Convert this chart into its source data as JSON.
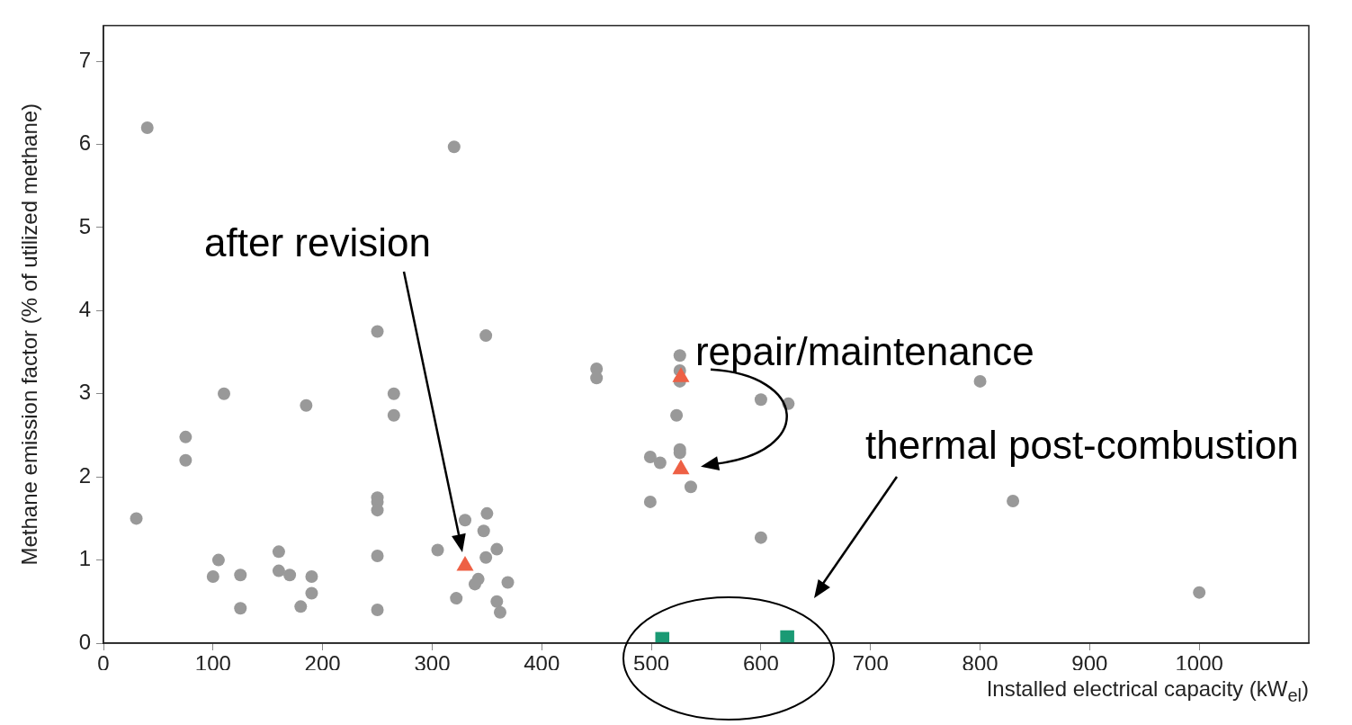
{
  "chart_data": {
    "type": "scatter",
    "xlabel": "Installed electrical capacity (kW$_{el}$)",
    "ylabel": "Methane emission factor (% of utilized methane)",
    "xlim": [
      0,
      1100
    ],
    "xticks": [
      0,
      100,
      200,
      300,
      400,
      500,
      600,
      700,
      800,
      900,
      1000
    ],
    "ylim": [
      0,
      7.43
    ],
    "yticks": [
      0,
      1,
      2,
      3,
      4,
      5,
      6,
      7
    ],
    "grid": false,
    "legend": false,
    "series": [
      {
        "color": "#999999",
        "marker": "circle",
        "x": [
          40,
          30,
          75,
          75,
          110,
          100,
          105,
          125,
          125,
          160,
          160,
          170,
          180,
          185,
          190,
          190,
          250,
          250,
          250,
          250,
          250,
          250,
          265,
          265,
          305,
          320,
          330,
          350,
          347,
          359,
          349,
          342,
          339,
          369,
          322,
          359,
          362,
          349,
          450,
          450,
          526,
          526,
          526,
          600,
          625,
          523,
          526,
          526,
          499,
          508,
          536,
          499,
          600,
          800,
          830,
          1000
        ],
        "values": [
          6.2,
          1.5,
          2.48,
          2.2,
          3.0,
          0.8,
          1.0,
          0.82,
          0.42,
          1.1,
          0.87,
          0.82,
          0.44,
          2.86,
          0.8,
          0.6,
          3.75,
          1.75,
          1.7,
          1.6,
          1.05,
          0.4,
          3.0,
          2.74,
          1.12,
          5.97,
          1.48,
          1.56,
          1.35,
          1.13,
          1.03,
          0.77,
          0.71,
          0.73,
          0.54,
          0.5,
          0.37,
          3.7,
          3.3,
          3.19,
          3.46,
          3.28,
          3.15,
          2.93,
          2.88,
          2.74,
          2.33,
          2.29,
          2.24,
          2.17,
          1.88,
          1.7,
          1.27,
          3.15,
          1.71,
          0.61
        ]
      },
      {
        "color": "#ee6045",
        "marker": "triangle",
        "x": [
          330,
          527,
          527
        ],
        "values": [
          0.93,
          3.2,
          2.09
        ]
      },
      {
        "color": "#1a9a74",
        "marker": "square",
        "x": [
          510,
          624
        ],
        "values": [
          0.05,
          0.07
        ]
      }
    ],
    "annotations": [
      "after revision",
      {
        "text": "repair/maintenance",
        "x": 527,
        "y": 2.09
      },
      "thermal post-combustion"
    ]
  }
}
